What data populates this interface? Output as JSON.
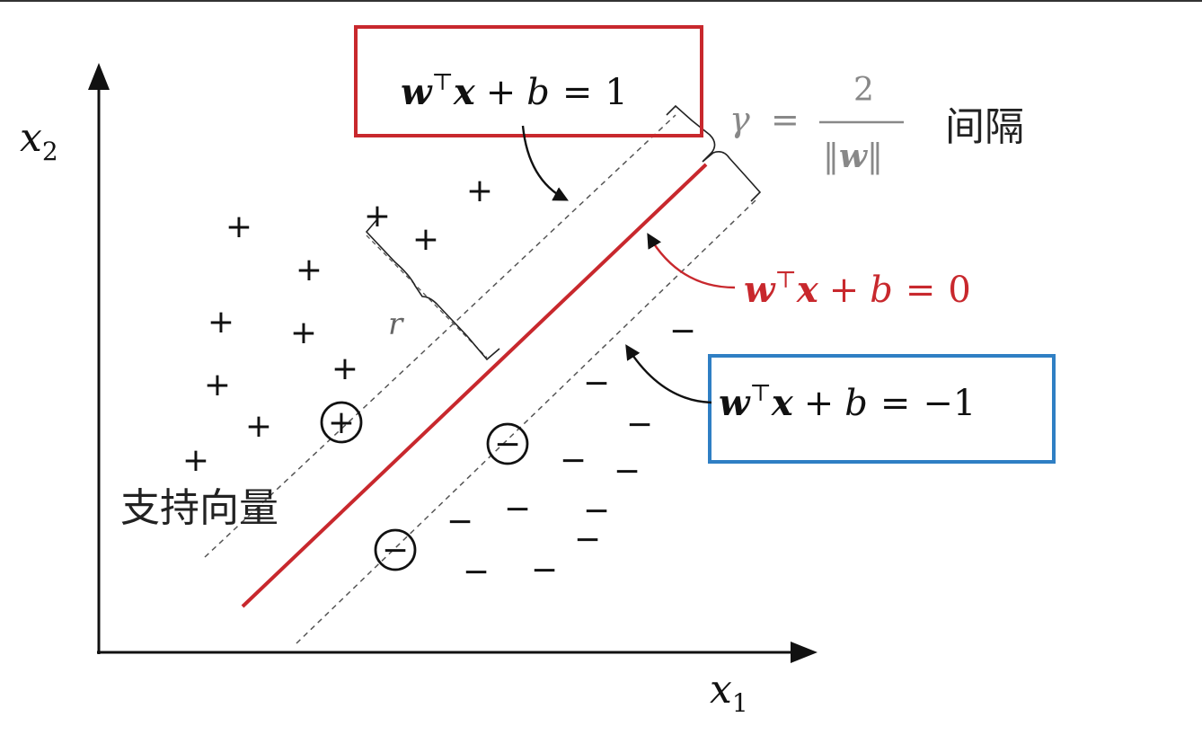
{
  "axes": {
    "y_label": "x",
    "y_sub": "2",
    "x_label": "x",
    "x_sub": "1"
  },
  "equations": {
    "positive_margin": {
      "w": "w",
      "top": "⊤",
      "x": "x",
      "plus": "+",
      "b": "b",
      "eq": "=",
      "rhs": "1"
    },
    "hyperplane": {
      "w": "w",
      "top": "⊤",
      "x": "x",
      "plus": "+",
      "b": "b",
      "eq": "=",
      "rhs": "0"
    },
    "negative_margin": {
      "w": "w",
      "top": "⊤",
      "x": "x",
      "plus": "+",
      "b": "b",
      "eq": "=",
      "rhs": "−1"
    }
  },
  "margin_formula": {
    "gamma": "γ",
    "eq": "=",
    "numerator": "2",
    "denominator_bars_left": "‖",
    "denominator_w": "w",
    "denominator_bars_right": "‖",
    "label": "间隔"
  },
  "distance_label": "r",
  "support_vector_label": "支持向量",
  "point_symbols": {
    "positive": "+",
    "negative": "−"
  },
  "colors": {
    "hyperplane": "#c8282d",
    "positive_box": "#c8282d",
    "negative_box": "#2f7fc4",
    "ink": "#111111",
    "muted": "#777777"
  }
}
